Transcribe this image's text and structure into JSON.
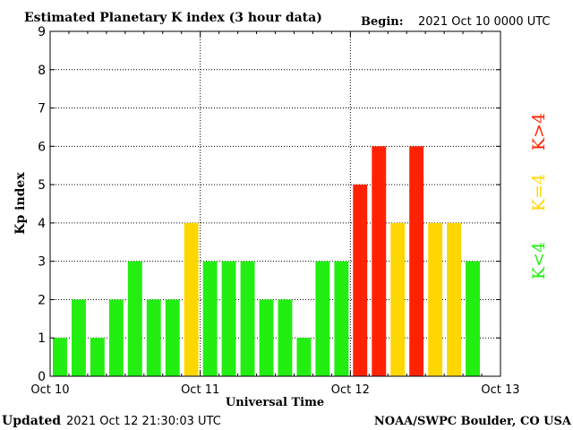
{
  "header": {
    "title": "Estimated Planetary K index (3 hour data)",
    "begin_label": "Begin:",
    "begin_value": "2021 Oct 10 0000 UTC"
  },
  "footer": {
    "updated_label": "Updated",
    "updated_value": "2021 Oct 12 21:30:03 UTC",
    "source": "NOAA/SWPC Boulder, CO USA"
  },
  "legend": {
    "low": "K<4",
    "mid": "K=4",
    "high": "K>4"
  },
  "colors": {
    "low": "#22ee11",
    "mid": "#ffd700",
    "high": "#ff2200"
  },
  "chart_data": {
    "type": "bar",
    "xlabel": "Universal Time",
    "ylabel": "Kp index",
    "ylim": [
      0,
      9
    ],
    "xlim": [
      0,
      72
    ],
    "yticks": [
      "0",
      "1",
      "2",
      "3",
      "4",
      "5",
      "6",
      "7",
      "8",
      "9"
    ],
    "xticks": [
      {
        "label": "Oct 10",
        "hour": 0
      },
      {
        "label": "Oct 11",
        "hour": 24
      },
      {
        "label": "Oct 12",
        "hour": 48
      },
      {
        "label": "Oct 13",
        "hour": 72
      }
    ],
    "bin_hours": 3,
    "values": [
      1,
      2,
      1,
      2,
      3,
      2,
      2,
      4,
      3,
      3,
      3,
      2,
      2,
      1,
      3,
      3,
      5,
      6,
      4,
      6,
      4,
      4,
      3
    ],
    "grid": true
  }
}
